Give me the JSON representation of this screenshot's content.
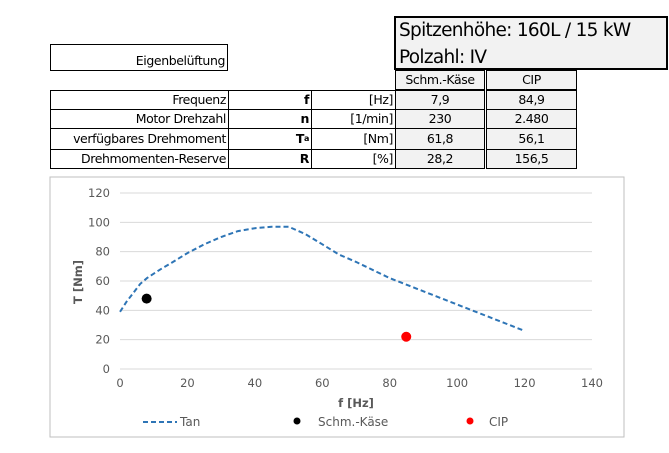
{
  "header": {
    "title_line1": "Spitzenhöhe: 160L / 15 kW",
    "title_line2": "Polzahl: IV",
    "ventilation": "Eigenbelüftung",
    "col1": "Schm.-Käse",
    "col2": "CIP"
  },
  "rows": [
    {
      "label": "Frequenz",
      "symbol": "f",
      "symbol_sub": "",
      "unit": "[Hz]",
      "v1": "7,9",
      "v2": "84,9"
    },
    {
      "label": "Motor Drehzahl",
      "symbol": "n",
      "symbol_sub": "",
      "unit": "[1/min]",
      "v1": "230",
      "v2": "2.480"
    },
    {
      "label": "verfügbares Drehmoment",
      "symbol": "T",
      "symbol_sub": "a",
      "unit": "[Nm]",
      "v1": "61,8",
      "v2": "56,1"
    },
    {
      "label": "Drehmomenten-Reserve",
      "symbol": "R",
      "symbol_sub": "",
      "unit": "[%]",
      "v1": "28,2",
      "v2": "156,5"
    }
  ],
  "chart_data": {
    "type": "line",
    "xlabel": "f [Hz]",
    "ylabel": "T [Nm]",
    "xlim": [
      0,
      140
    ],
    "ylim": [
      0,
      120
    ],
    "xticks": [
      "0",
      "20",
      "40",
      "60",
      "80",
      "100",
      "120",
      "140"
    ],
    "yticks": [
      "0",
      "20",
      "40",
      "60",
      "80",
      "100",
      "120"
    ],
    "grid": true,
    "legend_position": "bottom",
    "series": [
      {
        "name": "Tan",
        "style": "dashed-line",
        "color": "#2e75b6",
        "x": [
          0,
          2,
          4,
          6,
          8,
          10,
          12,
          15,
          20,
          25,
          30,
          35,
          40,
          45,
          50,
          55,
          60,
          65,
          70,
          80,
          90,
          100,
          110,
          120
        ],
        "y": [
          39,
          46,
          52,
          58,
          62,
          65,
          68,
          72,
          79,
          85,
          90,
          94,
          96,
          97,
          97,
          92,
          85,
          78,
          73,
          62,
          53,
          44,
          35,
          26
        ]
      },
      {
        "name": "Schm.-Käse",
        "style": "marker",
        "color": "#000000",
        "x": [
          7.9
        ],
        "y": [
          48
        ]
      },
      {
        "name": "CIP",
        "style": "marker",
        "color": "#ff0000",
        "x": [
          84.9
        ],
        "y": [
          22
        ]
      }
    ]
  }
}
